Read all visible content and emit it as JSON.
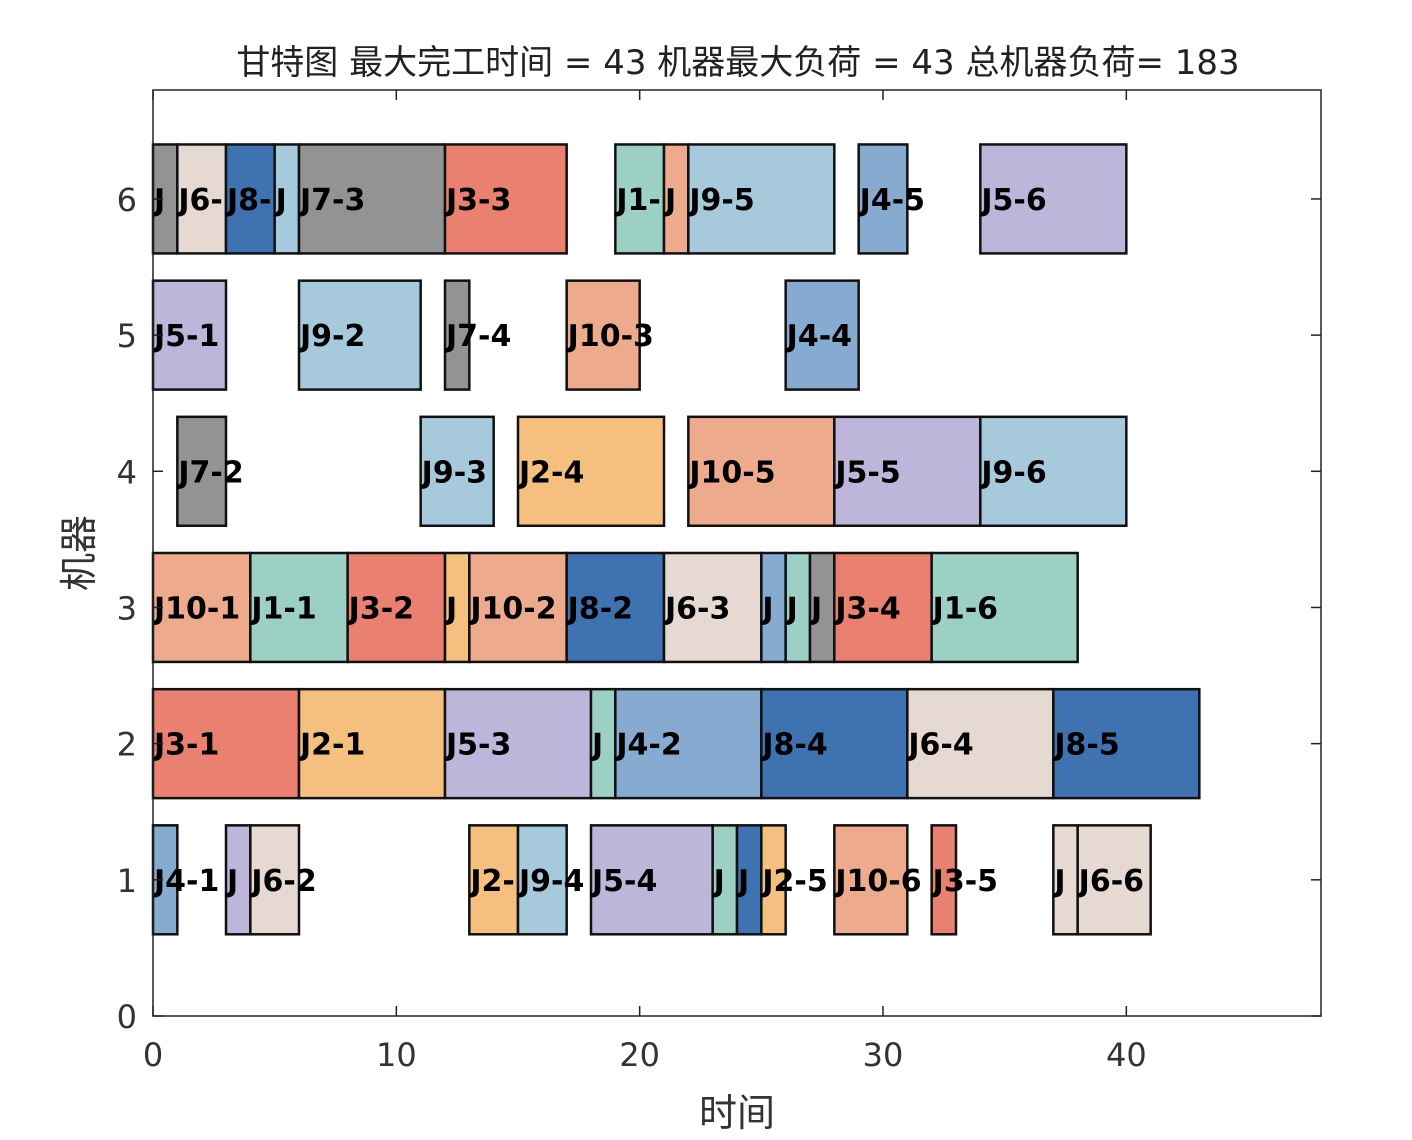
{
  "chart_data": {
    "type": "gantt",
    "title": "甘特图 最大完工时间 = 43 机器最大负荷 = 43 总机器负荷= 183",
    "xlabel": "时间",
    "ylabel": "机器",
    "xlim": [
      0,
      48
    ],
    "ylim": [
      0,
      6.8
    ],
    "xticks": [
      0,
      10,
      20,
      30,
      40
    ],
    "yticks": [
      0,
      1,
      2,
      3,
      4,
      5,
      6
    ],
    "grid": false,
    "colors": {
      "J1": "#9dd0c5",
      "J2": "#f5c07f",
      "J3": "#ea8070",
      "J4": "#87abd0",
      "J5": "#bdb6da",
      "J6": "#e6d9d1",
      "J7": "#939393",
      "J8": "#3e72b1",
      "J9": "#a6c9dc",
      "J10": "#eeaa8c"
    },
    "tasks": [
      {
        "machine": 6,
        "start": 0,
        "end": 1,
        "job": "J7",
        "label": "J"
      },
      {
        "machine": 6,
        "start": 1,
        "end": 3,
        "job": "J6",
        "label": "J6-"
      },
      {
        "machine": 6,
        "start": 3,
        "end": 5,
        "job": "J8",
        "label": "J8-"
      },
      {
        "machine": 6,
        "start": 5,
        "end": 6,
        "job": "J9",
        "label": "J"
      },
      {
        "machine": 6,
        "start": 6,
        "end": 12,
        "job": "J7",
        "label": "J7-3"
      },
      {
        "machine": 6,
        "start": 12,
        "end": 17,
        "job": "J3",
        "label": "J3-3"
      },
      {
        "machine": 6,
        "start": 19,
        "end": 21,
        "job": "J1",
        "label": "J1-"
      },
      {
        "machine": 6,
        "start": 21,
        "end": 22,
        "job": "J10",
        "label": "J"
      },
      {
        "machine": 6,
        "start": 22,
        "end": 28,
        "job": "J9",
        "label": "J9-5"
      },
      {
        "machine": 6,
        "start": 29,
        "end": 31,
        "job": "J4",
        "label": "J4-5"
      },
      {
        "machine": 6,
        "start": 34,
        "end": 40,
        "job": "J5",
        "label": "J5-6"
      },
      {
        "machine": 5,
        "start": 0,
        "end": 3,
        "job": "J5",
        "label": "J5-1"
      },
      {
        "machine": 5,
        "start": 6,
        "end": 11,
        "job": "J9",
        "label": "J9-2"
      },
      {
        "machine": 5,
        "start": 12,
        "end": 13,
        "job": "J7",
        "label": "J7-4"
      },
      {
        "machine": 5,
        "start": 17,
        "end": 20,
        "job": "J10",
        "label": "J10-3"
      },
      {
        "machine": 5,
        "start": 26,
        "end": 29,
        "job": "J4",
        "label": "J4-4"
      },
      {
        "machine": 4,
        "start": 1,
        "end": 3,
        "job": "J7",
        "label": "J7-2"
      },
      {
        "machine": 4,
        "start": 11,
        "end": 14,
        "job": "J9",
        "label": "J9-3"
      },
      {
        "machine": 4,
        "start": 15,
        "end": 21,
        "job": "J2",
        "label": "J2-4"
      },
      {
        "machine": 4,
        "start": 22,
        "end": 28,
        "job": "J10",
        "label": "J10-5"
      },
      {
        "machine": 4,
        "start": 28,
        "end": 34,
        "job": "J5",
        "label": "J5-5"
      },
      {
        "machine": 4,
        "start": 34,
        "end": 40,
        "job": "J9",
        "label": "J9-6"
      },
      {
        "machine": 3,
        "start": 0,
        "end": 4,
        "job": "J10",
        "label": "J10-1"
      },
      {
        "machine": 3,
        "start": 4,
        "end": 8,
        "job": "J1",
        "label": "J1-1"
      },
      {
        "machine": 3,
        "start": 8,
        "end": 12,
        "job": "J3",
        "label": "J3-2"
      },
      {
        "machine": 3,
        "start": 12,
        "end": 13,
        "job": "J2",
        "label": "J"
      },
      {
        "machine": 3,
        "start": 13,
        "end": 17,
        "job": "J10",
        "label": "J10-2"
      },
      {
        "machine": 3,
        "start": 17,
        "end": 21,
        "job": "J8",
        "label": "J8-2"
      },
      {
        "machine": 3,
        "start": 21,
        "end": 25,
        "job": "J6",
        "label": "J6-3"
      },
      {
        "machine": 3,
        "start": 25,
        "end": 26,
        "job": "J4",
        "label": "J"
      },
      {
        "machine": 3,
        "start": 26,
        "end": 27,
        "job": "J1",
        "label": "J"
      },
      {
        "machine": 3,
        "start": 27,
        "end": 28,
        "job": "J7",
        "label": "J"
      },
      {
        "machine": 3,
        "start": 28,
        "end": 32,
        "job": "J3",
        "label": "J3-4"
      },
      {
        "machine": 3,
        "start": 32,
        "end": 38,
        "job": "J1",
        "label": "J1-6"
      },
      {
        "machine": 2,
        "start": 0,
        "end": 6,
        "job": "J3",
        "label": "J3-1"
      },
      {
        "machine": 2,
        "start": 6,
        "end": 12,
        "job": "J2",
        "label": "J2-1"
      },
      {
        "machine": 2,
        "start": 12,
        "end": 18,
        "job": "J5",
        "label": "J5-3"
      },
      {
        "machine": 2,
        "start": 18,
        "end": 19,
        "job": "J1",
        "label": "J"
      },
      {
        "machine": 2,
        "start": 19,
        "end": 25,
        "job": "J4",
        "label": "J4-2"
      },
      {
        "machine": 2,
        "start": 25,
        "end": 31,
        "job": "J8",
        "label": "J8-4"
      },
      {
        "machine": 2,
        "start": 31,
        "end": 37,
        "job": "J6",
        "label": "J6-4"
      },
      {
        "machine": 2,
        "start": 37,
        "end": 43,
        "job": "J8",
        "label": "J8-5"
      },
      {
        "machine": 1,
        "start": 0,
        "end": 1,
        "job": "J4",
        "label": "J4-1"
      },
      {
        "machine": 1,
        "start": 3,
        "end": 4,
        "job": "J5",
        "label": "J"
      },
      {
        "machine": 1,
        "start": 4,
        "end": 6,
        "job": "J6",
        "label": "J6-2"
      },
      {
        "machine": 1,
        "start": 13,
        "end": 15,
        "job": "J2",
        "label": "J2-"
      },
      {
        "machine": 1,
        "start": 15,
        "end": 17,
        "job": "J9",
        "label": "J9-4"
      },
      {
        "machine": 1,
        "start": 18,
        "end": 23,
        "job": "J5",
        "label": "J5-4"
      },
      {
        "machine": 1,
        "start": 23,
        "end": 24,
        "job": "J1",
        "label": "J"
      },
      {
        "machine": 1,
        "start": 24,
        "end": 25,
        "job": "J8",
        "label": "J"
      },
      {
        "machine": 1,
        "start": 25,
        "end": 26,
        "job": "J2",
        "label": "J2-5"
      },
      {
        "machine": 1,
        "start": 28,
        "end": 31,
        "job": "J10",
        "label": "J10-6"
      },
      {
        "machine": 1,
        "start": 32,
        "end": 33,
        "job": "J3",
        "label": "J3-5"
      },
      {
        "machine": 1,
        "start": 37,
        "end": 38,
        "job": "J6",
        "label": "J"
      },
      {
        "machine": 1,
        "start": 38,
        "end": 41,
        "job": "J6",
        "label": "J6-6"
      }
    ]
  }
}
